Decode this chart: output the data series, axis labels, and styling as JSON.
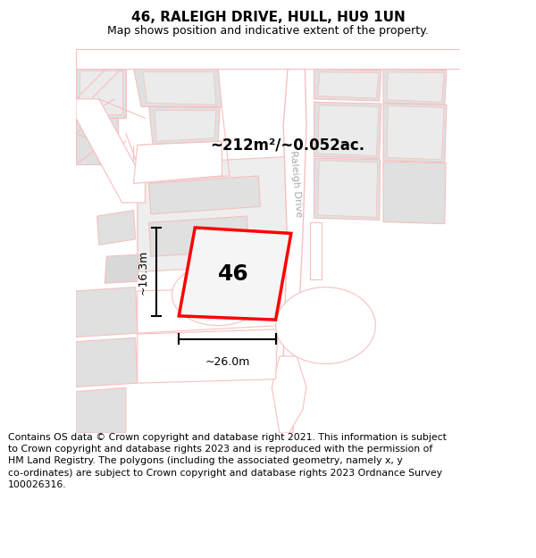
{
  "title": "46, RALEIGH DRIVE, HULL, HU9 1UN",
  "subtitle": "Map shows position and indicative extent of the property.",
  "footer": "Contains OS data © Crown copyright and database right 2021. This information is subject\nto Crown copyright and database rights 2023 and is reproduced with the permission of\nHM Land Registry. The polygons (including the associated geometry, namely x, y\nco-ordinates) are subject to Crown copyright and database rights 2023 Ordnance Survey\n100026316.",
  "area_label": "~212m²/~0.052ac.",
  "number_label": "46",
  "dim_width": "~26.0m",
  "dim_height": "~16.3m",
  "road_label": "Raleigh Drive",
  "map_bg": "#f7f7f7",
  "plot_fill": "#f0f0f0",
  "plot_outline": "#ff0000",
  "road_fill": "#ffffff",
  "road_line": "#f5c0c0",
  "block_fill": "#e0e0e0",
  "block_line": "#f5c0c0",
  "title_fontsize": 11,
  "subtitle_fontsize": 9,
  "footer_fontsize": 7.8,
  "road_label_color": "#aaaaaa"
}
